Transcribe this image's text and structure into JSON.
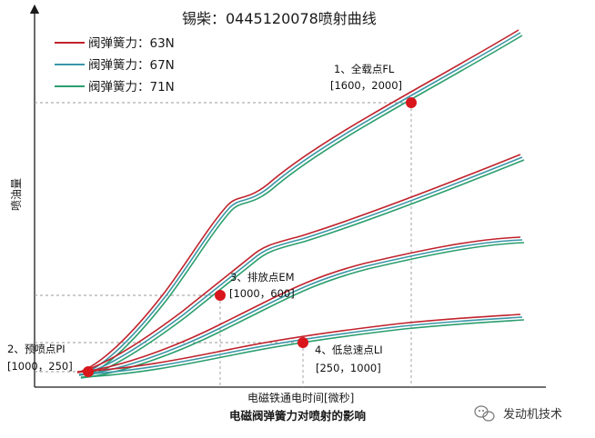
{
  "chart_data": {
    "type": "line",
    "title": "锡柴：0445120078喷射曲线",
    "xlabel": "电磁铁通电时间[微秒]",
    "ylabel": "喷油量",
    "caption": "电磁阀弹簧力对喷射的影响",
    "legend_position": "top-left",
    "grid": false,
    "colors": {
      "series_63N": "#c0222c",
      "series_67N": "#3a96a8",
      "series_71N": "#2a9e6e",
      "points": "#d8161c",
      "guide": "#9a9a9a"
    },
    "series": [
      {
        "name": "阀弹簧力：63N"
      },
      {
        "name": "阀弹簧力：67N"
      },
      {
        "name": "阀弹簧力：71N"
      }
    ],
    "points": [
      {
        "label_1": "1、全载点FL",
        "label_2": "[1600，2000]"
      },
      {
        "label_1": "3、排放点EM",
        "label_2": "[1000，600]"
      },
      {
        "label_1": "4、低怠速点LI",
        "label_2": "[250，1000]"
      },
      {
        "label_1": "2、预喷点PI",
        "label_2": "[1000，250]"
      }
    ]
  },
  "watermark": {
    "text": "发动机技术",
    "icon": "wechat-logo-icon"
  }
}
